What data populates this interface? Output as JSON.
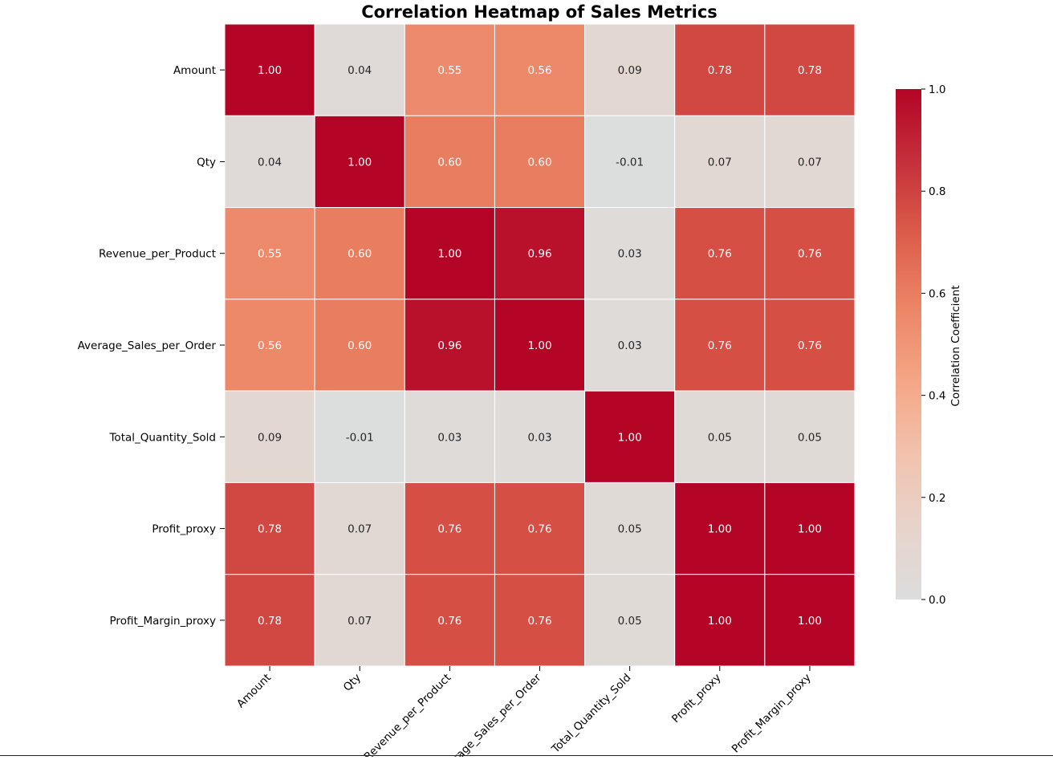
{
  "chart_data": {
    "type": "heatmap",
    "title": "Correlation Heatmap of Sales Metrics",
    "x_categories": [
      "Amount",
      "Qty",
      "Revenue_per_Product",
      "Average_Sales_per_Order",
      "Total_Quantity_Sold",
      "Profit_proxy",
      "Profit_Margin_proxy"
    ],
    "y_categories": [
      "Amount",
      "Qty",
      "Revenue_per_Product",
      "Average_Sales_per_Order",
      "Total_Quantity_Sold",
      "Profit_proxy",
      "Profit_Margin_proxy"
    ],
    "values": [
      [
        1.0,
        0.04,
        0.55,
        0.56,
        0.09,
        0.78,
        0.78
      ],
      [
        0.04,
        1.0,
        0.6,
        0.6,
        -0.01,
        0.07,
        0.07
      ],
      [
        0.55,
        0.6,
        1.0,
        0.96,
        0.03,
        0.76,
        0.76
      ],
      [
        0.56,
        0.6,
        0.96,
        1.0,
        0.03,
        0.76,
        0.76
      ],
      [
        0.09,
        -0.01,
        0.03,
        0.03,
        1.0,
        0.05,
        0.05
      ],
      [
        0.78,
        0.07,
        0.76,
        0.76,
        0.05,
        1.0,
        1.0
      ],
      [
        0.78,
        0.07,
        0.76,
        0.76,
        0.05,
        1.0,
        1.0
      ]
    ],
    "value_format": "0.00",
    "colorbar": {
      "label": "Correlation Coefficient",
      "range": [
        0.0,
        1.0
      ],
      "ticks": [
        0.0,
        0.2,
        0.4,
        0.6,
        0.8,
        1.0
      ],
      "tick_labels": [
        "0.0",
        "0.2",
        "0.4",
        "0.6",
        "0.8",
        "1.0"
      ]
    },
    "colormap": {
      "name": "coolwarm",
      "stops": [
        "#dcdddd",
        "#e7d3cb",
        "#f2c2ad",
        "#f4a685",
        "#ec8566",
        "#dc5d4a",
        "#c5303b",
        "#b40426"
      ]
    },
    "annotation_colors": {
      "light": "#ffffff",
      "dark": "#262626"
    },
    "cell_border_color": "#ffffff"
  }
}
